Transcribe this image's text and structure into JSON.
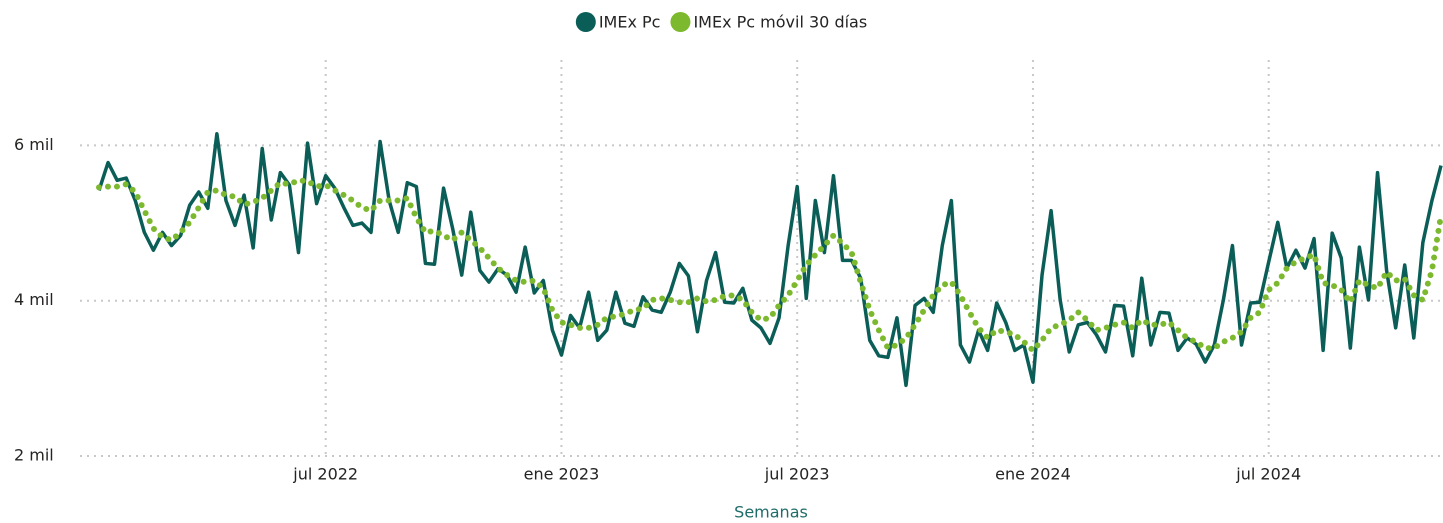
{
  "chart_data": {
    "type": "line",
    "x_label": "Semanas",
    "series": [
      {
        "name": "IMEx Pc",
        "color": "#0b5e57",
        "style": "solid",
        "values": [
          5420,
          5780,
          5550,
          5580,
          5290,
          4880,
          4650,
          4880,
          4710,
          4840,
          5230,
          5400,
          5190,
          6150,
          5290,
          4970,
          5360,
          4680,
          5960,
          5040,
          5650,
          5490,
          4620,
          6030,
          5250,
          5610,
          5450,
          5200,
          4970,
          5000,
          4880,
          6050,
          5290,
          4880,
          5520,
          5470,
          4480,
          4470,
          5450,
          4930,
          4330,
          5140,
          4390,
          4240,
          4410,
          4330,
          4110,
          4690,
          4100,
          4260,
          3620,
          3300,
          3810,
          3650,
          4110,
          3490,
          3620,
          4110,
          3710,
          3670,
          4050,
          3880,
          3850,
          4110,
          4480,
          4320,
          3600,
          4260,
          4620,
          3980,
          3970,
          4160,
          3750,
          3650,
          3450,
          3780,
          4710,
          5470,
          4030,
          5290,
          4620,
          5610,
          4520,
          4520,
          4290,
          3490,
          3290,
          3270,
          3780,
          2910,
          3940,
          4030,
          3850,
          4710,
          5290,
          3430,
          3210,
          3620,
          3360,
          3970,
          3720,
          3360,
          3430,
          2950,
          4330,
          5160,
          4010,
          3340,
          3690,
          3720,
          3560,
          3340,
          3940,
          3930,
          3290,
          4290,
          3430,
          3850,
          3840,
          3360,
          3520,
          3440,
          3210,
          3430,
          4010,
          4710,
          3430,
          3970,
          3980,
          4500,
          5010,
          4420,
          4650,
          4420,
          4800,
          3360,
          4870,
          4550,
          3390,
          4690,
          4010,
          5650,
          4390,
          3650,
          4460,
          3520,
          4750,
          5290,
          5740
        ]
      },
      {
        "name": "IMEx Pc móvil 30 días",
        "color": "#7db92e",
        "style": "dotted",
        "values": [
          5460,
          5470,
          5470,
          5500,
          5400,
          5160,
          4930,
          4820,
          4780,
          4880,
          5010,
          5200,
          5400,
          5420,
          5360,
          5340,
          5240,
          5270,
          5320,
          5420,
          5520,
          5500,
          5550,
          5540,
          5470,
          5490,
          5420,
          5360,
          5290,
          5200,
          5160,
          5290,
          5290,
          5290,
          5320,
          5070,
          4880,
          4900,
          4840,
          4780,
          4880,
          4780,
          4680,
          4550,
          4420,
          4330,
          4260,
          4240,
          4260,
          4160,
          3880,
          3720,
          3690,
          3650,
          3650,
          3690,
          3780,
          3800,
          3830,
          3880,
          3900,
          4010,
          4030,
          4010,
          3980,
          3980,
          4030,
          3990,
          4010,
          4060,
          4070,
          4010,
          3850,
          3750,
          3780,
          3940,
          4070,
          4260,
          4460,
          4590,
          4710,
          4840,
          4740,
          4620,
          4240,
          3880,
          3620,
          3390,
          3430,
          3520,
          3690,
          3880,
          4070,
          4200,
          4240,
          4070,
          3850,
          3650,
          3520,
          3620,
          3600,
          3560,
          3470,
          3360,
          3490,
          3650,
          3690,
          3750,
          3850,
          3750,
          3620,
          3650,
          3690,
          3720,
          3650,
          3750,
          3690,
          3690,
          3720,
          3620,
          3520,
          3470,
          3390,
          3390,
          3470,
          3520,
          3600,
          3780,
          3850,
          4140,
          4230,
          4420,
          4500,
          4550,
          4590,
          4230,
          4200,
          4140,
          3980,
          4260,
          4200,
          4160,
          4370,
          4260,
          4280,
          4070,
          4010,
          4390,
          5100
        ]
      }
    ],
    "xlim": [
      0,
      148
    ],
    "xticks": [
      {
        "value": 25,
        "label": "jul 2022"
      },
      {
        "value": 51,
        "label": "ene 2023"
      },
      {
        "value": 77,
        "label": "jul 2023"
      },
      {
        "value": 103,
        "label": "ene 2024"
      },
      {
        "value": 129,
        "label": "jul 2024"
      }
    ],
    "ylim": [
      2000,
      7100
    ],
    "yticks": [
      {
        "value": 2000,
        "label": "2 mil"
      },
      {
        "value": 4000,
        "label": "4 mil"
      },
      {
        "value": 6000,
        "label": "6 mil"
      }
    ],
    "grid": true,
    "legend": "top"
  }
}
